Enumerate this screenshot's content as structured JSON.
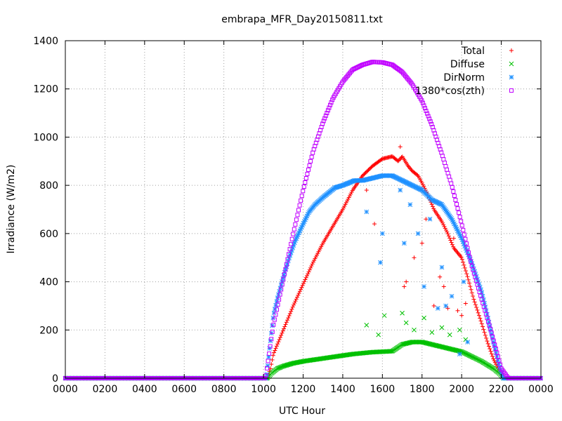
{
  "chart_data": {
    "type": "scatter",
    "title": "embrapa_MFR_Day20150811.txt",
    "xlabel": "UTC Hour",
    "ylabel": "Irradiance (W/m2)",
    "xlim": [
      0,
      24
    ],
    "ylim": [
      0,
      1400
    ],
    "x_ticks": [
      0,
      2,
      4,
      6,
      8,
      10,
      12,
      14,
      16,
      18,
      20,
      22,
      24
    ],
    "x_tick_labels": [
      "0000",
      "0200",
      "0400",
      "0600",
      "0800",
      "1000",
      "1200",
      "1400",
      "1600",
      "1800",
      "2000",
      "2200",
      "0000"
    ],
    "y_ticks": [
      0,
      200,
      400,
      600,
      800,
      1000,
      1200,
      1400
    ],
    "y_tick_labels": [
      "0",
      "200",
      "400",
      "600",
      "800",
      "1000",
      "1200",
      "1400"
    ],
    "grid": true,
    "legend_position": "top-right",
    "series": [
      {
        "name": "Total",
        "color": "#ff0000",
        "marker": "plus",
        "x": [
          0,
          10.2,
          10.35,
          10.5,
          11,
          11.5,
          12,
          12.5,
          13,
          13.5,
          14,
          14.5,
          15,
          15.5,
          16,
          16.5,
          16.8,
          17,
          17.3,
          17.5,
          17.8,
          18,
          18.3,
          18.6,
          19,
          19.3,
          19.6,
          20,
          20.3,
          20.6,
          21,
          21.3,
          21.6,
          21.9,
          22.1,
          22.3,
          24
        ],
        "y": [
          0,
          0,
          40,
          100,
          200,
          300,
          390,
          480,
          560,
          630,
          700,
          780,
          840,
          880,
          910,
          920,
          900,
          920,
          880,
          860,
          840,
          810,
          760,
          700,
          650,
          600,
          540,
          500,
          420,
          330,
          230,
          150,
          80,
          30,
          0,
          0,
          0
        ],
        "outliers_x": [
          15.2,
          15.6,
          16.9,
          17.1,
          17.2,
          17.6,
          18.0,
          18.2,
          18.6,
          18.9,
          19.1,
          19.3,
          19.6,
          19.8,
          20.0,
          20.2
        ],
        "outliers_y": [
          780,
          640,
          960,
          380,
          400,
          500,
          560,
          660,
          300,
          420,
          380,
          290,
          580,
          280,
          260,
          310
        ]
      },
      {
        "name": "Diffuse",
        "color": "#00c000",
        "marker": "cross",
        "x": [
          0,
          10.2,
          10.4,
          10.7,
          11,
          11.5,
          12,
          12.5,
          13,
          13.5,
          14,
          14.5,
          15,
          15.5,
          16,
          16.5,
          17,
          17.5,
          18,
          18.5,
          19,
          19.5,
          20,
          20.5,
          21,
          21.3,
          21.6,
          21.9,
          22.1,
          24
        ],
        "y": [
          0,
          0,
          20,
          40,
          50,
          62,
          70,
          76,
          82,
          88,
          94,
          100,
          104,
          108,
          110,
          112,
          140,
          150,
          150,
          140,
          130,
          120,
          110,
          90,
          70,
          55,
          40,
          20,
          0,
          0
        ],
        "outliers_x": [
          15.2,
          15.8,
          16.1,
          17.0,
          17.2,
          17.6,
          18.1,
          18.5,
          19.0,
          19.4,
          19.9,
          20.2
        ],
        "outliers_y": [
          220,
          180,
          260,
          270,
          230,
          200,
          250,
          190,
          210,
          180,
          200,
          160
        ]
      },
      {
        "name": "DirNorm",
        "color": "#1e90ff",
        "marker": "star",
        "x": [
          0,
          10.15,
          10.3,
          10.5,
          10.7,
          11,
          11.3,
          11.6,
          12,
          12.3,
          12.6,
          13,
          13.3,
          13.6,
          14,
          14.3,
          14.6,
          15,
          15.5,
          16,
          16.5,
          17,
          17.5,
          18,
          18.5,
          19,
          19.5,
          20,
          20.5,
          21,
          21.3,
          21.6,
          21.9,
          22.1,
          24
        ],
        "y": [
          0,
          0,
          120,
          260,
          330,
          420,
          500,
          570,
          640,
          690,
          720,
          750,
          770,
          790,
          800,
          810,
          820,
          820,
          830,
          840,
          840,
          820,
          800,
          780,
          740,
          720,
          660,
          580,
          480,
          360,
          260,
          150,
          50,
          0,
          0
        ],
        "outliers_x": [
          15.2,
          15.9,
          16.0,
          16.9,
          17.1,
          17.4,
          17.8,
          18.1,
          18.4,
          18.8,
          19.0,
          19.2,
          19.5,
          19.9,
          20.1,
          20.3
        ],
        "outliers_y": [
          690,
          480,
          600,
          780,
          560,
          720,
          600,
          380,
          660,
          290,
          460,
          300,
          340,
          100,
          400,
          150
        ]
      },
      {
        "name": "1380*cos(zth)",
        "color": "#c000ff",
        "marker": "square",
        "x": [
          0,
          10.1,
          10.5,
          11,
          11.5,
          12,
          12.5,
          13,
          13.5,
          14,
          14.5,
          15,
          15.5,
          16,
          16.5,
          17,
          17.5,
          18,
          18.5,
          19,
          19.5,
          20,
          20.5,
          21,
          21.5,
          22,
          22.35,
          24
        ],
        "y": [
          0,
          0,
          220,
          410,
          600,
          780,
          940,
          1060,
          1160,
          1230,
          1280,
          1300,
          1312,
          1310,
          1300,
          1270,
          1220,
          1150,
          1050,
          930,
          800,
          640,
          470,
          330,
          190,
          40,
          0,
          0
        ]
      }
    ]
  }
}
